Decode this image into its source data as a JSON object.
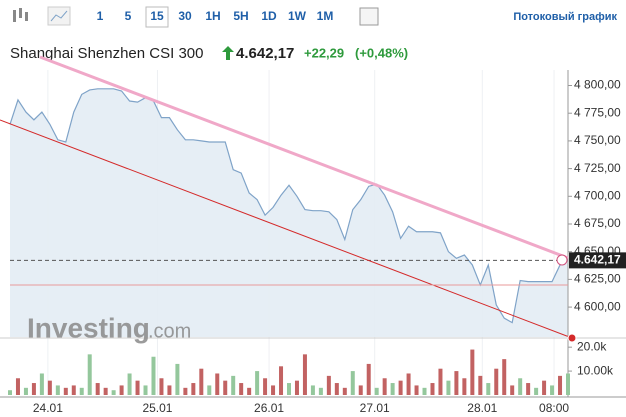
{
  "toolbar": {
    "timeframes": [
      "1",
      "5",
      "15",
      "30",
      "1H",
      "5H",
      "1D",
      "1W",
      "1M"
    ],
    "stream_link": "Потоковый график"
  },
  "quote": {
    "name": "Shanghai Shenzhen CSI 300",
    "price": "4.642,17",
    "change": "+22,29",
    "change_pct": "(+0,48%)"
  },
  "chart_data": {
    "type": "area",
    "watermark": {
      "brand": "Investing",
      "suffix": ".com"
    },
    "x": [
      0,
      1,
      2,
      3,
      4,
      5,
      6,
      7,
      8,
      9,
      10,
      11,
      12,
      13,
      14,
      15,
      16,
      17,
      18,
      19,
      20,
      21,
      22,
      23,
      24,
      25,
      26,
      27,
      28,
      29,
      30,
      31,
      32,
      33,
      34,
      35,
      36,
      37,
      38,
      39,
      40,
      41,
      42,
      43,
      44,
      45,
      46,
      47,
      48,
      49,
      50,
      51,
      52,
      53,
      54,
      55,
      56,
      57,
      58,
      59,
      60,
      61,
      62,
      63,
      64,
      65,
      66,
      67,
      68,
      69,
      70
    ],
    "values": [
      4765,
      4787,
      4776,
      4769,
      4776,
      4765,
      4751,
      4749,
      4776,
      4792,
      4796,
      4797,
      4797,
      4797,
      4795,
      4786,
      4785,
      4789,
      4786,
      4771,
      4771,
      4760,
      4751,
      4751,
      4750,
      4749,
      4749,
      4749,
      4724,
      4721,
      4703,
      4697,
      4683,
      4690,
      4701,
      4710,
      4700,
      4688,
      4687,
      4687,
      4686,
      4679,
      4661,
      4688,
      4697,
      4709,
      4711,
      4701,
      4686,
      4662,
      4673,
      4668,
      4668,
      4668,
      4667,
      4650,
      4644,
      4647,
      4638,
      4620,
      4638,
      4602,
      4590,
      4586,
      4624,
      4623,
      4623,
      4623,
      4623,
      4638,
      4642.17
    ],
    "color": "#7fa3c8",
    "xlim": [
      0,
      70
    ],
    "xticks": [
      {
        "value": 4.75,
        "label": "24.01"
      },
      {
        "value": 18.5,
        "label": "25.01"
      },
      {
        "value": 32.5,
        "label": "26.01"
      },
      {
        "value": 45.75,
        "label": "27.01"
      },
      {
        "value": 59.25,
        "label": "28.01"
      },
      {
        "value": 68.25,
        "label": "08:00"
      }
    ],
    "ylim": [
      4573,
      4814
    ],
    "yticks": [
      {
        "value": 4600,
        "label": "4 600,00"
      },
      {
        "value": 4625,
        "label": "4 625,00"
      },
      {
        "value": 4650,
        "label": "4 650,00"
      },
      {
        "value": 4675,
        "label": "4 675,00"
      },
      {
        "value": 4700,
        "label": "4 700,00"
      },
      {
        "value": 4725,
        "label": "4 725,00"
      },
      {
        "value": 4750,
        "label": "4 750,00"
      },
      {
        "value": 4775,
        "label": "4 775,00"
      },
      {
        "value": 4800,
        "label": "4 800,00"
      }
    ],
    "last_price": {
      "value": 4642.17,
      "label": "4.642,17"
    },
    "volume": {
      "values": [
        2000,
        7000,
        3000,
        5000,
        9000,
        6000,
        4000,
        3000,
        4000,
        3000,
        17000,
        5000,
        3000,
        2000,
        4000,
        9000,
        6000,
        4000,
        16000,
        7000,
        4000,
        13000,
        3000,
        5000,
        11000,
        4000,
        9000,
        6000,
        8000,
        5000,
        3000,
        10000,
        7000,
        4000,
        12000,
        5000,
        6000,
        17000,
        4000,
        3000,
        8000,
        5000,
        3000,
        10000,
        4000,
        13000,
        3000,
        7000,
        5000,
        6000,
        9000,
        4000,
        3000,
        5000,
        11000,
        6000,
        10000,
        7000,
        19000,
        8000,
        5000,
        11000,
        15000,
        4000,
        7000,
        5000,
        3000,
        6000,
        4000,
        8000,
        9000
      ],
      "colors": [
        "#94c79c",
        "#c26262",
        "#94c79c",
        "#c26262",
        "#94c79c",
        "#c26262",
        "#94c79c",
        "#c26262",
        "#c26262",
        "#94c79c",
        "#94c79c",
        "#c26262",
        "#c26262",
        "#94c79c",
        "#c26262",
        "#94c79c",
        "#c26262",
        "#94c79c",
        "#94c79c",
        "#c26262",
        "#c26262",
        "#94c79c",
        "#c26262",
        "#c26262",
        "#c26262",
        "#94c79c",
        "#c26262",
        "#c26262",
        "#94c79c",
        "#c26262",
        "#c26262",
        "#94c79c",
        "#c26262",
        "#c26262",
        "#c26262",
        "#94c79c",
        "#c26262",
        "#c26262",
        "#94c79c",
        "#94c79c",
        "#c26262",
        "#c26262",
        "#c26262",
        "#94c79c",
        "#c26262",
        "#c26262",
        "#94c79c",
        "#c26262",
        "#94c79c",
        "#c26262",
        "#c26262",
        "#c26262",
        "#94c79c",
        "#c26262",
        "#c26262",
        "#94c79c",
        "#c26262",
        "#c26262",
        "#c26262",
        "#c26262",
        "#94c79c",
        "#c26262",
        "#c26262",
        "#c26262",
        "#94c79c",
        "#c26262",
        "#94c79c",
        "#c26262",
        "#94c79c",
        "#c26262",
        "#94c79c"
      ],
      "ylim": [
        0,
        23000
      ],
      "yticks": [
        {
          "value": 10000,
          "label": "10.00k"
        },
        {
          "value": 20000,
          "label": "20.0k"
        }
      ]
    }
  }
}
